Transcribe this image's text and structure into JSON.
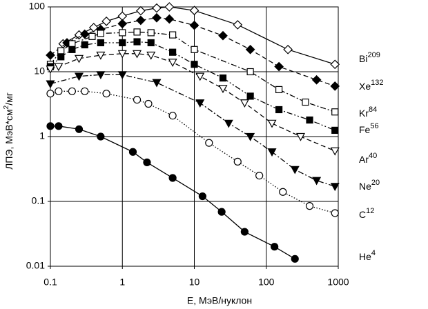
{
  "chart_data": {
    "type": "line",
    "xlabel": "E, МэВ/нуклон",
    "ylabel": [
      "ЛПЭ, МэВ*см",
      "2",
      "/мг"
    ],
    "xscale": "log",
    "yscale": "log",
    "xlim": [
      0.1,
      1000
    ],
    "ylim": [
      0.01,
      100
    ],
    "xticks": [
      0.1,
      1,
      10,
      100,
      1000
    ],
    "yticks": [
      0.01,
      0.1,
      1,
      10,
      100
    ],
    "grid": true,
    "series": [
      {
        "name": "Bi",
        "superscript": "209",
        "color": "#000000",
        "marker": "diamond",
        "filled": false,
        "line": "solid",
        "x": [
          0.15,
          0.25,
          0.4,
          0.6,
          1,
          1.8,
          3,
          4.5,
          10,
          40,
          200,
          900
        ],
        "values": [
          27,
          37,
          48,
          60,
          72,
          87,
          96,
          100,
          88,
          53,
          22,
          13
        ]
      },
      {
        "name": "Xe",
        "superscript": "132",
        "color": "#000000",
        "marker": "diamond",
        "filled": true,
        "line": "dashed",
        "x": [
          0.1,
          0.17,
          0.3,
          0.5,
          1,
          1.8,
          3,
          4.5,
          10,
          25,
          60,
          150,
          500,
          900
        ],
        "values": [
          18,
          28,
          38,
          45,
          55,
          62,
          68,
          65,
          52,
          36,
          22,
          12,
          7.5,
          6
        ]
      },
      {
        "name": "Kr",
        "superscript": "84",
        "color": "#000000",
        "marker": "square",
        "filled": false,
        "line": "dashdot",
        "x": [
          0.1,
          0.14,
          0.2,
          0.38,
          0.5,
          1,
          1.6,
          2.5,
          5,
          10,
          60,
          150,
          350,
          900
        ],
        "values": [
          13,
          21,
          27,
          35,
          39,
          40,
          41,
          40,
          37,
          22,
          10,
          5.3,
          3.4,
          2.4
        ]
      },
      {
        "name": "Fe",
        "superscript": "56",
        "color": "#000000",
        "marker": "square",
        "filled": true,
        "line": "dashdotdot",
        "x": [
          0.1,
          0.14,
          0.2,
          0.3,
          0.5,
          1,
          1.6,
          2.5,
          5,
          10,
          25,
          60,
          150,
          400,
          900
        ],
        "values": [
          12,
          17,
          22,
          26,
          28,
          28,
          29,
          28,
          20,
          13,
          8,
          4.2,
          2.6,
          1.8,
          1.25
        ]
      },
      {
        "name": "Ar",
        "superscript": "40",
        "color": "#000000",
        "marker": "triangle",
        "filled": false,
        "line": "dashed",
        "x": [
          0.1,
          0.13,
          0.25,
          0.5,
          1,
          1.6,
          2.5,
          5,
          12,
          25,
          50,
          120,
          300,
          900
        ],
        "values": [
          11,
          12,
          16,
          18,
          19,
          19,
          18,
          14,
          8.5,
          5.5,
          3.3,
          1.6,
          1,
          0.6
        ]
      },
      {
        "name": "Ne",
        "superscript": "20",
        "color": "#000000",
        "marker": "triangle",
        "filled": true,
        "line": "dashdot",
        "x": [
          0.1,
          0.25,
          0.5,
          1,
          3,
          12,
          30,
          60,
          120,
          250,
          500,
          900
        ],
        "values": [
          6.5,
          8.5,
          9,
          9,
          6.8,
          3.3,
          1.6,
          1,
          0.58,
          0.31,
          0.21,
          0.17
        ]
      },
      {
        "name": "C",
        "superscript": "12",
        "color": "#000000",
        "marker": "circle",
        "filled": false,
        "line": "dotted",
        "x": [
          0.1,
          0.13,
          0.2,
          0.3,
          0.6,
          1.6,
          2.3,
          5,
          16,
          40,
          80,
          170,
          400,
          900
        ],
        "values": [
          4.6,
          5,
          5,
          5,
          4.6,
          3.7,
          3.2,
          2.1,
          0.8,
          0.41,
          0.25,
          0.14,
          0.085,
          0.066
        ]
      },
      {
        "name": "He",
        "superscript": "4",
        "color": "#000000",
        "marker": "circle",
        "filled": true,
        "line": "solid",
        "x": [
          0.1,
          0.13,
          0.25,
          0.5,
          1.4,
          2.2,
          5,
          13,
          24,
          50,
          130,
          250
        ],
        "values": [
          1.45,
          1.45,
          1.3,
          1,
          0.58,
          0.4,
          0.23,
          0.12,
          0.069,
          0.034,
          0.02,
          0.013
        ]
      }
    ]
  }
}
